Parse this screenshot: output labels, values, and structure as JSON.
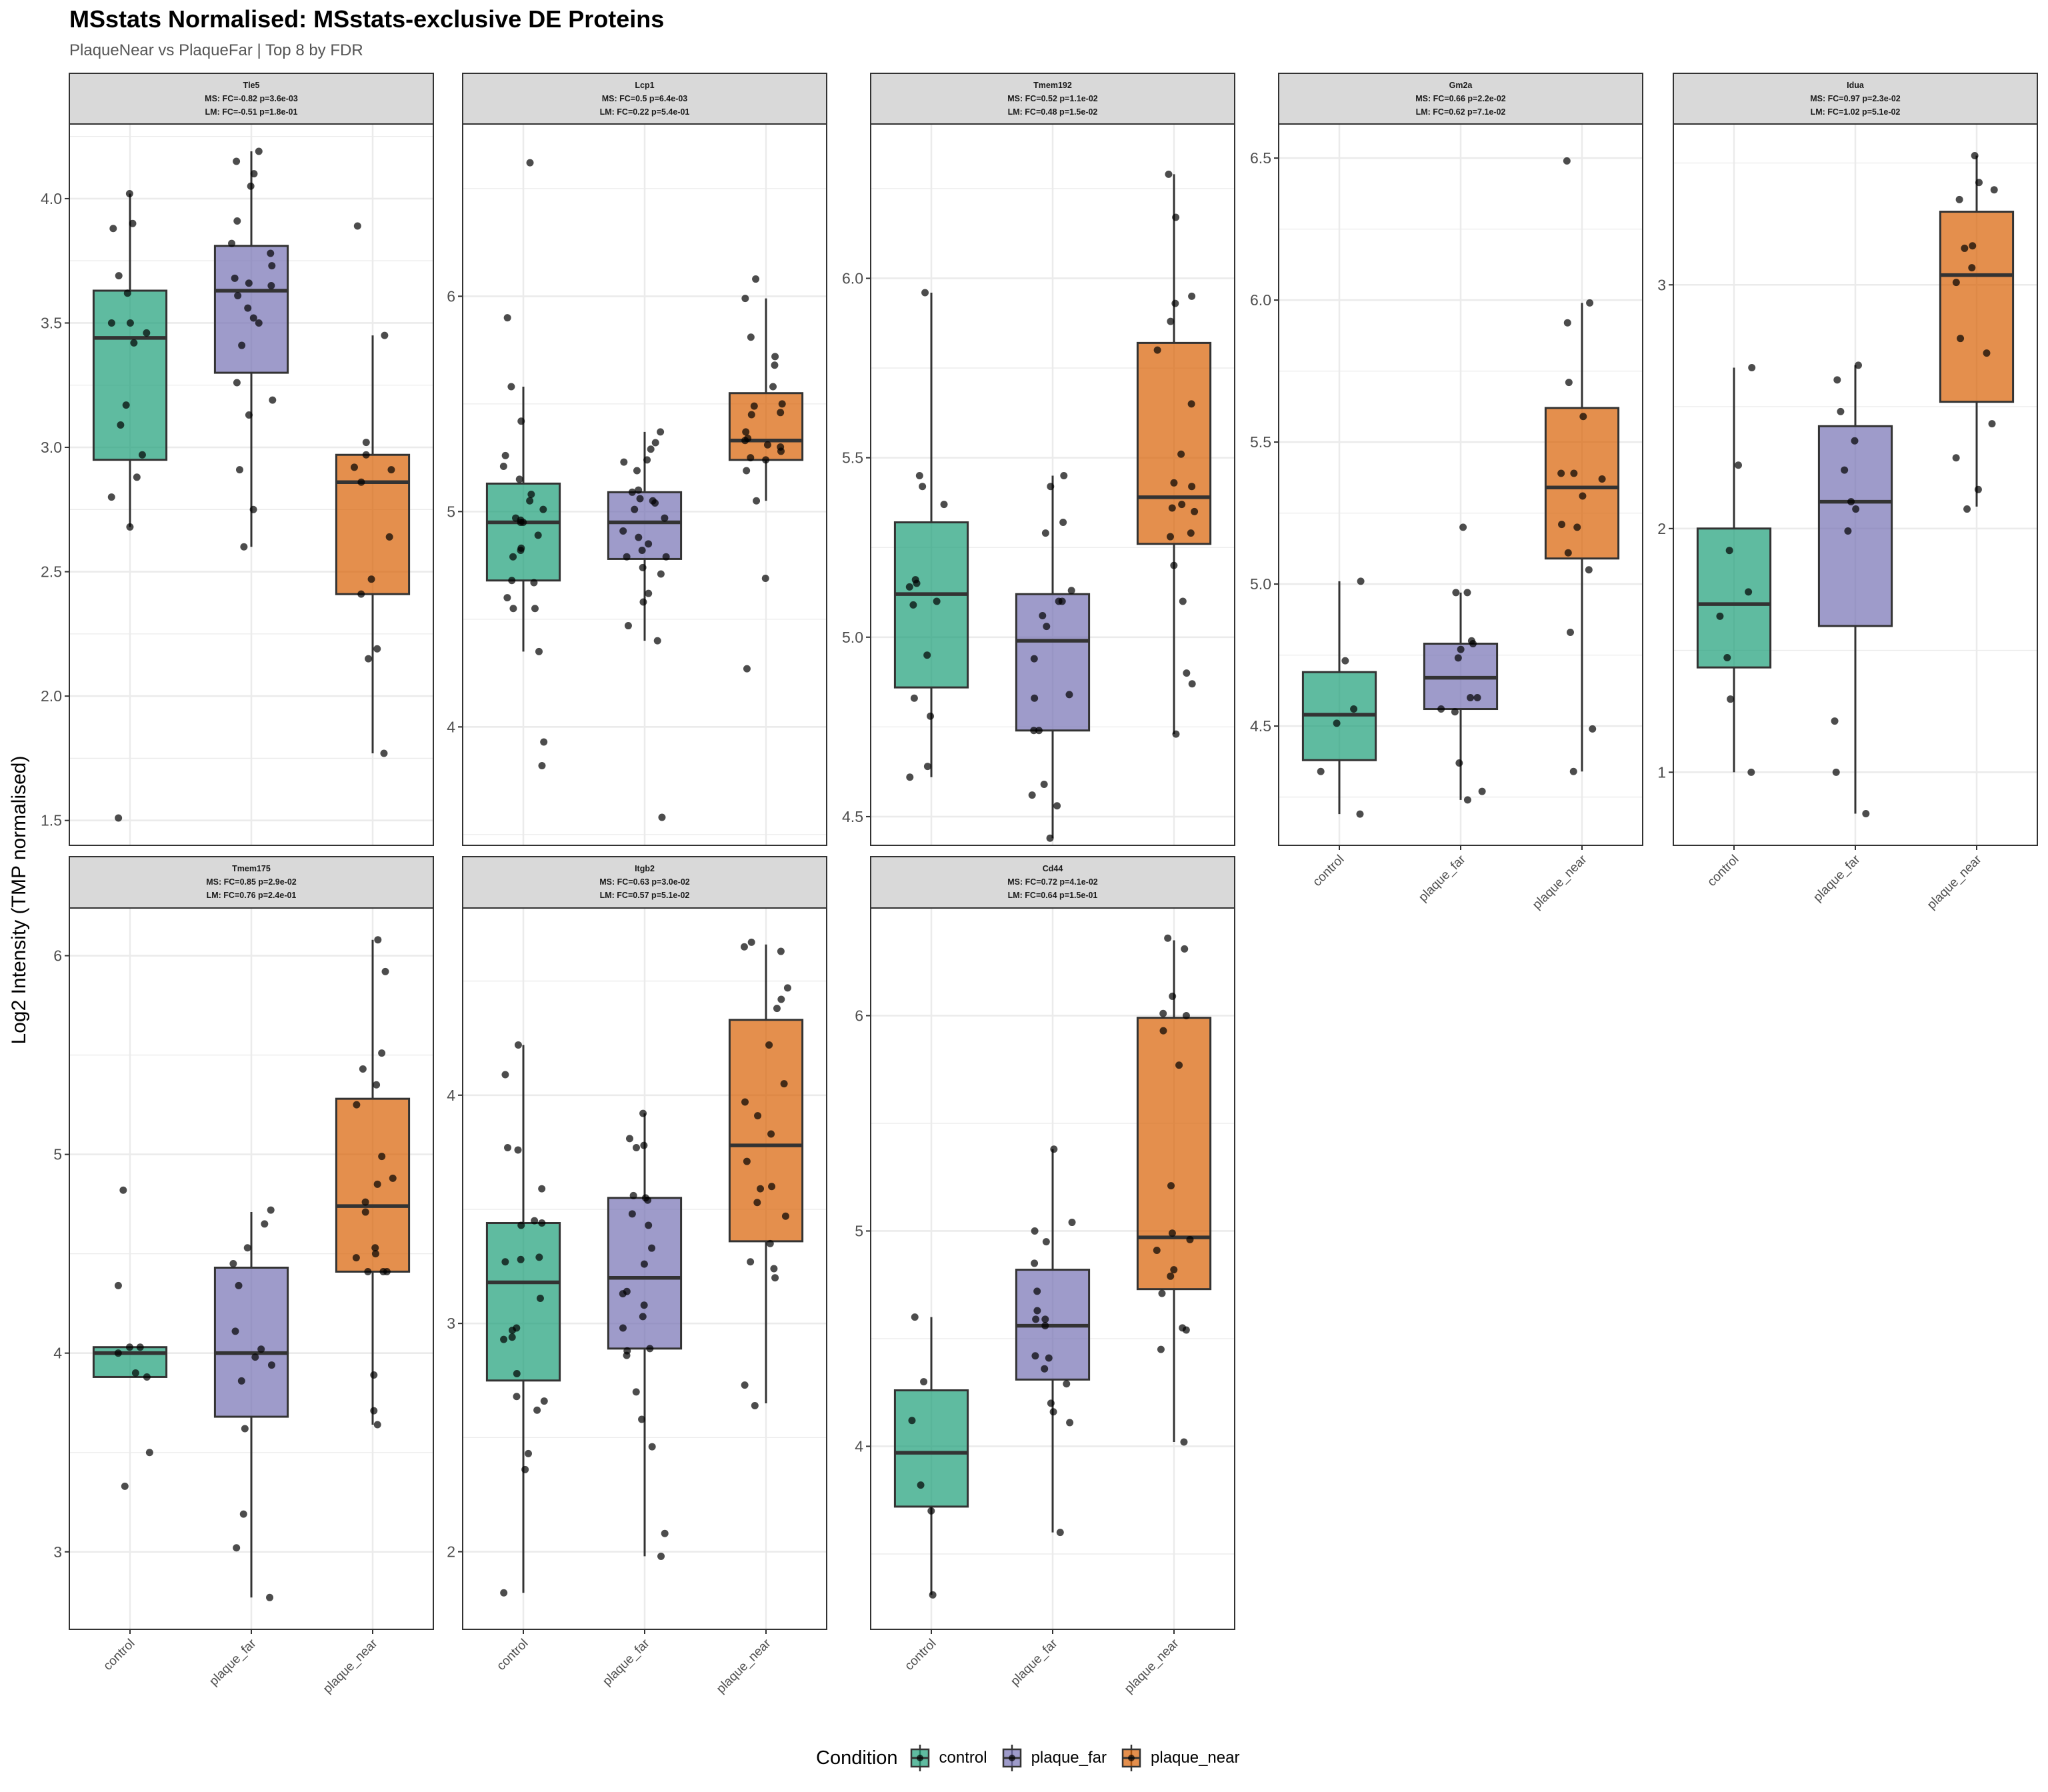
{
  "title": "MSstats Normalised: MSstats-exclusive DE Proteins",
  "subtitle": "PlaqueNear vs PlaqueFar | Top 8 by FDR",
  "legend": {
    "title": "Condition",
    "items": [
      {
        "label": "control",
        "color": "#1b9e77"
      },
      {
        "label": "plaque_far",
        "color": "#7570b3"
      },
      {
        "label": "plaque_near",
        "color": "#d95f02"
      }
    ]
  },
  "chart_data": {
    "type": "box",
    "title": "MSstats Normalised: MSstats-exclusive DE Proteins",
    "subtitle": "PlaqueNear vs PlaqueFar | Top 8 by FDR",
    "xlabel": "",
    "ylabel": "Log2 Intensity (TMP normalised)",
    "categories": [
      "control",
      "plaque_far",
      "plaque_near"
    ],
    "colors": {
      "control": "#1b9e77",
      "plaque_far": "#7570b3",
      "plaque_near": "#d95f02"
    },
    "legend_position": "bottom",
    "grid": true,
    "panels": [
      {
        "protein": "Tle5",
        "ms": "MS: FC=-0.82 p=3.6e-03",
        "lm": "LM: FC=-0.51 p=1.8e-01",
        "ylim": [
          1.4,
          4.3
        ],
        "yticks": [
          1.5,
          2.0,
          2.5,
          3.0,
          3.5,
          4.0
        ],
        "ytick_labels": [
          "1.5",
          "2.0",
          "2.5",
          "3.0",
          "3.5",
          "4.0"
        ],
        "boxes": [
          {
            "group": "control",
            "q1": 2.95,
            "median": 3.44,
            "q3": 3.63,
            "whisker_low": 2.68,
            "whisker_high": 4.02,
            "points": [
              4.02,
              3.9,
              3.88,
              3.69,
              3.62,
              3.5,
              3.5,
              3.46,
              3.42,
              3.17,
              3.09,
              2.97,
              2.88,
              2.8,
              2.68,
              1.51
            ]
          },
          {
            "group": "plaque_far",
            "q1": 3.3,
            "median": 3.63,
            "q3": 3.81,
            "whisker_low": 2.6,
            "whisker_high": 4.19,
            "points": [
              4.19,
              4.15,
              4.1,
              4.05,
              3.91,
              3.82,
              3.78,
              3.73,
              3.68,
              3.66,
              3.65,
              3.61,
              3.56,
              3.52,
              3.5,
              3.41,
              3.26,
              3.19,
              3.13,
              2.91,
              2.75,
              2.6
            ]
          },
          {
            "group": "plaque_near",
            "q1": 2.41,
            "median": 2.86,
            "q3": 2.97,
            "whisker_low": 1.77,
            "whisker_high": 3.45,
            "points": [
              3.89,
              3.45,
              3.02,
              2.97,
              2.92,
              2.91,
              2.86,
              2.64,
              2.47,
              2.41,
              2.19,
              2.15,
              1.77
            ]
          }
        ]
      },
      {
        "protein": "Lcp1",
        "ms": "MS: FC=0.5 p=6.4e-03",
        "lm": "LM: FC=0.22 p=5.4e-01",
        "ylim": [
          3.45,
          6.8
        ],
        "yticks": [
          4,
          5,
          6
        ],
        "ytick_labels": [
          "4",
          "5",
          "6"
        ],
        "boxes": [
          {
            "group": "control",
            "q1": 4.68,
            "median": 4.95,
            "q3": 5.13,
            "whisker_low": 4.35,
            "whisker_high": 5.58,
            "points": [
              6.62,
              5.9,
              5.58,
              5.42,
              5.26,
              5.21,
              5.15,
              5.08,
              5.05,
              5.01,
              4.97,
              4.95,
              4.95,
              4.96,
              4.89,
              4.83,
              4.82,
              4.79,
              4.68,
              4.67,
              4.6,
              4.55,
              4.55,
              4.35,
              3.93,
              3.82
            ]
          },
          {
            "group": "plaque_far",
            "q1": 4.78,
            "median": 4.95,
            "q3": 5.09,
            "whisker_low": 4.4,
            "whisker_high": 5.37,
            "points": [
              5.37,
              5.32,
              5.29,
              5.24,
              5.23,
              5.19,
              5.1,
              5.09,
              5.06,
              5.05,
              5.04,
              5.01,
              4.97,
              4.91,
              4.88,
              4.85,
              4.82,
              4.79,
              4.79,
              4.74,
              4.71,
              4.62,
              4.58,
              4.47,
              4.4,
              3.58
            ]
          },
          {
            "group": "plaque_near",
            "q1": 5.24,
            "median": 5.33,
            "q3": 5.55,
            "whisker_low": 5.05,
            "whisker_high": 5.99,
            "points": [
              6.08,
              5.99,
              5.81,
              5.72,
              5.68,
              5.58,
              5.5,
              5.49,
              5.46,
              5.45,
              5.37,
              5.34,
              5.33,
              5.31,
              5.3,
              5.28,
              5.25,
              5.24,
              5.19,
              5.05,
              4.69,
              4.27
            ]
          }
        ]
      },
      {
        "protein": "Tmem192",
        "ms": "MS: FC=0.52 p=1.1e-02",
        "lm": "LM: FC=0.48 p=1.5e-02",
        "ylim": [
          4.42,
          6.43
        ],
        "yticks": [
          4.5,
          5.0,
          5.5,
          6.0
        ],
        "ytick_labels": [
          "4.5",
          "5.0",
          "5.5",
          "6.0"
        ],
        "boxes": [
          {
            "group": "control",
            "q1": 4.86,
            "median": 5.12,
            "q3": 5.32,
            "whisker_low": 4.61,
            "whisker_high": 5.96,
            "points": [
              5.96,
              5.45,
              5.42,
              5.37,
              5.16,
              5.15,
              5.14,
              5.1,
              5.09,
              4.95,
              4.83,
              4.78,
              4.64,
              4.61
            ]
          },
          {
            "group": "plaque_far",
            "q1": 4.74,
            "median": 4.99,
            "q3": 5.12,
            "whisker_low": 4.44,
            "whisker_high": 5.45,
            "points": [
              5.45,
              5.42,
              5.32,
              5.29,
              5.13,
              5.1,
              5.1,
              5.06,
              5.03,
              4.94,
              4.84,
              4.83,
              4.74,
              4.74,
              4.59,
              4.56,
              4.53,
              4.44
            ]
          },
          {
            "group": "plaque_near",
            "q1": 5.26,
            "median": 5.39,
            "q3": 5.82,
            "whisker_low": 4.73,
            "whisker_high": 6.29,
            "points": [
              6.29,
              6.17,
              5.95,
              5.93,
              5.88,
              5.8,
              5.65,
              5.51,
              5.43,
              5.42,
              5.37,
              5.36,
              5.35,
              5.29,
              5.28,
              5.2,
              5.1,
              4.9,
              4.87,
              4.73
            ]
          }
        ]
      },
      {
        "protein": "Gm2a",
        "ms": "MS: FC=0.66 p=2.2e-02",
        "lm": "LM: FC=0.62 p=7.1e-02",
        "ylim": [
          4.08,
          6.62
        ],
        "yticks": [
          4.5,
          5.0,
          5.5,
          6.0,
          6.5
        ],
        "ytick_labels": [
          "4.5",
          "5.0",
          "5.5",
          "6.0",
          "6.5"
        ],
        "boxes": [
          {
            "group": "control",
            "q1": 4.38,
            "median": 4.54,
            "q3": 4.69,
            "whisker_low": 4.19,
            "whisker_high": 5.01,
            "points": [
              5.01,
              4.73,
              4.56,
              4.51,
              4.34,
              4.19
            ]
          },
          {
            "group": "plaque_far",
            "q1": 4.56,
            "median": 4.67,
            "q3": 4.79,
            "whisker_low": 4.24,
            "whisker_high": 4.97,
            "points": [
              5.2,
              4.97,
              4.97,
              4.8,
              4.79,
              4.77,
              4.74,
              4.6,
              4.6,
              4.56,
              4.55,
              4.37,
              4.27,
              4.24
            ]
          },
          {
            "group": "plaque_near",
            "q1": 5.09,
            "median": 5.34,
            "q3": 5.62,
            "whisker_low": 4.34,
            "whisker_high": 5.99,
            "points": [
              6.49,
              5.99,
              5.92,
              5.71,
              5.59,
              5.39,
              5.39,
              5.37,
              5.31,
              5.21,
              5.2,
              5.11,
              5.05,
              4.83,
              4.49,
              4.34
            ]
          }
        ]
      },
      {
        "protein": "Idua",
        "ms": "MS: FC=0.97 p=2.3e-02",
        "lm": "LM: FC=1.02 p=5.1e-02",
        "ylim": [
          0.7,
          3.66
        ],
        "yticks": [
          1,
          2,
          3
        ],
        "ytick_labels": [
          "1",
          "2",
          "3"
        ],
        "boxes": [
          {
            "group": "control",
            "q1": 1.43,
            "median": 1.69,
            "q3": 2.0,
            "whisker_low": 1.0,
            "whisker_high": 2.66,
            "points": [
              2.66,
              2.26,
              1.91,
              1.74,
              1.64,
              1.47,
              1.3,
              1.0
            ]
          },
          {
            "group": "plaque_far",
            "q1": 1.6,
            "median": 2.11,
            "q3": 2.42,
            "whisker_low": 0.83,
            "whisker_high": 2.67,
            "points": [
              2.67,
              2.61,
              2.48,
              2.36,
              2.24,
              2.11,
              2.08,
              1.99,
              1.21,
              1.0,
              0.83
            ]
          },
          {
            "group": "plaque_near",
            "q1": 2.52,
            "median": 3.04,
            "q3": 3.3,
            "whisker_low": 2.09,
            "whisker_high": 3.53,
            "points": [
              3.53,
              3.42,
              3.39,
              3.35,
              3.16,
              3.15,
              3.07,
              3.01,
              2.78,
              2.72,
              2.43,
              2.29,
              2.16,
              2.08
            ]
          }
        ]
      },
      {
        "protein": "Tmem175",
        "ms": "MS: FC=0.85 p=2.9e-02",
        "lm": "LM: FC=0.76 p=2.4e-01",
        "ylim": [
          2.61,
          6.24
        ],
        "yticks": [
          3,
          4,
          5,
          6
        ],
        "ytick_labels": [
          "3",
          "4",
          "5",
          "6"
        ],
        "boxes": [
          {
            "group": "control",
            "q1": 3.88,
            "median": 4.0,
            "q3": 4.03,
            "whisker_low": 3.88,
            "whisker_high": 4.03,
            "points": [
              4.82,
              4.34,
              4.03,
              4.03,
              4.0,
              3.9,
              3.88,
              3.5,
              3.33
            ]
          },
          {
            "group": "plaque_far",
            "q1": 3.68,
            "median": 4.0,
            "q3": 4.43,
            "whisker_low": 2.77,
            "whisker_high": 4.71,
            "points": [
              4.72,
              4.65,
              4.53,
              4.45,
              4.34,
              4.11,
              4.02,
              3.98,
              3.94,
              3.86,
              3.62,
              3.19,
              3.02,
              2.77
            ]
          },
          {
            "group": "plaque_near",
            "q1": 4.41,
            "median": 4.74,
            "q3": 5.28,
            "whisker_low": 3.64,
            "whisker_high": 6.08,
            "points": [
              6.08,
              5.92,
              5.51,
              5.43,
              5.35,
              5.25,
              4.99,
              4.88,
              4.85,
              4.76,
              4.71,
              4.53,
              4.5,
              4.48,
              4.41,
              4.41,
              4.41,
              3.89,
              3.71,
              3.64
            ]
          }
        ]
      },
      {
        "protein": "Itgb2",
        "ms": "MS: FC=0.63 p=3.0e-02",
        "lm": "LM: FC=0.57 p=5.1e-02",
        "ylim": [
          1.66,
          4.82
        ],
        "yticks": [
          2,
          3,
          4
        ],
        "ytick_labels": [
          "2",
          "3",
          "4"
        ],
        "boxes": [
          {
            "group": "control",
            "q1": 2.75,
            "median": 3.18,
            "q3": 3.44,
            "whisker_low": 1.82,
            "whisker_high": 4.22,
            "points": [
              4.22,
              4.09,
              3.77,
              3.76,
              3.59,
              3.45,
              3.44,
              3.43,
              3.29,
              3.28,
              3.27,
              3.11,
              2.98,
              2.97,
              2.94,
              2.93,
              2.78,
              2.68,
              2.66,
              2.62,
              2.43,
              2.36,
              1.82
            ]
          },
          {
            "group": "plaque_far",
            "q1": 2.89,
            "median": 3.2,
            "q3": 3.55,
            "whisker_low": 1.98,
            "whisker_high": 3.92,
            "points": [
              3.92,
              3.81,
              3.78,
              3.77,
              3.56,
              3.55,
              3.54,
              3.48,
              3.43,
              3.33,
              3.26,
              3.14,
              3.13,
              3.08,
              3.03,
              2.98,
              2.89,
              2.88,
              2.86,
              2.7,
              2.58,
              2.46,
              2.08,
              1.98
            ]
          },
          {
            "group": "plaque_near",
            "q1": 3.36,
            "median": 3.78,
            "q3": 4.33,
            "whisker_low": 2.65,
            "whisker_high": 4.66,
            "points": [
              4.67,
              4.65,
              4.63,
              4.47,
              4.42,
              4.38,
              4.22,
              4.05,
              3.97,
              3.91,
              3.83,
              3.71,
              3.6,
              3.59,
              3.53,
              3.47,
              3.35,
              3.27,
              3.24,
              3.2,
              2.73,
              2.64
            ]
          }
        ]
      },
      {
        "protein": "Cd44",
        "ms": "MS: FC=0.72 p=4.1e-02",
        "lm": "LM: FC=0.64 p=1.5e-01",
        "ylim": [
          3.15,
          6.5
        ],
        "yticks": [
          4,
          5,
          6
        ],
        "ytick_labels": [
          "4",
          "5",
          "6"
        ],
        "boxes": [
          {
            "group": "control",
            "q1": 3.72,
            "median": 3.97,
            "q3": 4.26,
            "whisker_low": 3.31,
            "whisker_high": 4.6,
            "points": [
              4.6,
              4.3,
              4.12,
              3.82,
              3.7,
              3.31
            ]
          },
          {
            "group": "plaque_far",
            "q1": 4.31,
            "median": 4.56,
            "q3": 4.82,
            "whisker_low": 3.6,
            "whisker_high": 5.38,
            "points": [
              5.38,
              5.04,
              5.0,
              4.95,
              4.85,
              4.72,
              4.63,
              4.59,
              4.59,
              4.56,
              4.42,
              4.41,
              4.36,
              4.29,
              4.2,
              4.16,
              4.11,
              3.6
            ]
          },
          {
            "group": "plaque_near",
            "q1": 4.73,
            "median": 4.97,
            "q3": 5.99,
            "whisker_low": 4.02,
            "whisker_high": 6.35,
            "points": [
              6.36,
              6.31,
              6.09,
              6.01,
              6.0,
              5.93,
              5.77,
              5.21,
              4.99,
              4.96,
              4.91,
              4.82,
              4.79,
              4.71,
              4.54,
              4.55,
              4.45,
              4.02
            ]
          }
        ]
      }
    ]
  }
}
